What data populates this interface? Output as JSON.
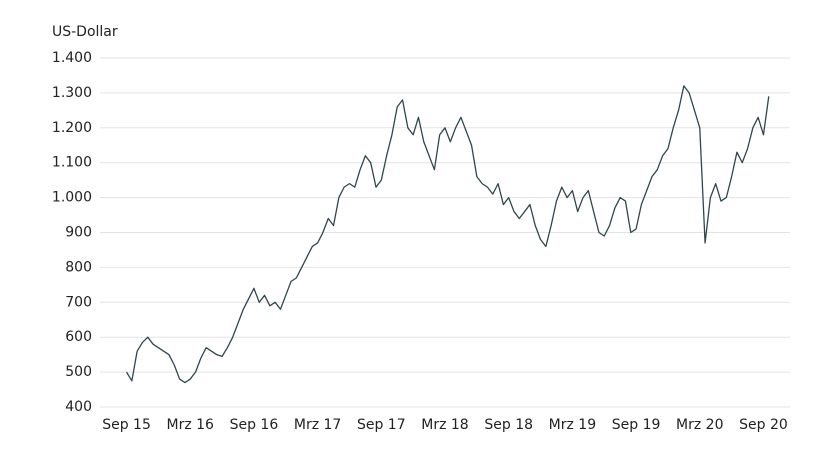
{
  "chart_data": {
    "type": "line",
    "ylabel": "US-Dollar",
    "color": "#2f474c",
    "grid": true,
    "x": [
      0,
      0.5,
      1,
      1.5,
      2,
      2.5,
      3,
      3.5,
      4,
      4.5,
      5,
      5.5,
      6,
      6.5,
      7,
      7.5,
      8,
      8.5,
      9,
      9.5,
      10,
      10.5,
      11,
      11.5,
      12,
      12.5,
      13,
      13.5,
      14,
      14.5,
      15,
      15.5,
      16,
      16.5,
      17,
      17.5,
      18,
      18.5,
      19,
      19.5,
      20,
      20.5,
      21,
      21.5,
      22,
      22.5,
      23,
      23.5,
      24,
      24.5,
      25,
      25.5,
      26,
      26.5,
      27,
      27.5,
      28,
      28.5,
      29,
      29.5,
      30,
      30.5,
      31,
      31.5,
      32,
      32.5,
      33,
      33.5,
      34,
      34.5,
      35,
      35.5,
      36,
      36.5,
      37,
      37.5,
      38,
      38.5,
      39,
      39.5,
      40,
      40.5,
      41,
      41.5,
      42,
      42.5,
      43,
      43.5,
      44,
      44.5,
      45,
      45.5,
      46,
      46.5,
      47,
      47.5,
      48,
      48.5,
      49,
      49.5,
      50,
      50.5,
      51,
      51.5,
      52,
      52.5,
      53,
      53.5,
      54,
      54.5,
      55,
      55.5,
      56,
      56.5,
      57,
      57.5,
      58,
      58.5,
      59,
      59.5,
      60,
      60.5
    ],
    "values": [
      500,
      475,
      560,
      585,
      600,
      580,
      570,
      560,
      550,
      520,
      480,
      470,
      480,
      500,
      540,
      570,
      560,
      550,
      545,
      570,
      600,
      640,
      680,
      710,
      740,
      700,
      720,
      690,
      700,
      680,
      720,
      760,
      770,
      800,
      830,
      860,
      870,
      900,
      940,
      920,
      1000,
      1030,
      1040,
      1030,
      1080,
      1120,
      1100,
      1030,
      1050,
      1120,
      1180,
      1260,
      1280,
      1200,
      1180,
      1230,
      1160,
      1120,
      1080,
      1180,
      1200,
      1160,
      1200,
      1230,
      1190,
      1150,
      1060,
      1040,
      1030,
      1010,
      1040,
      980,
      1000,
      960,
      940,
      960,
      980,
      920,
      880,
      860,
      920,
      990,
      1030,
      1000,
      1020,
      960,
      1000,
      1020,
      960,
      900,
      890,
      920,
      970,
      1000,
      990,
      900,
      910,
      980,
      1020,
      1060,
      1080,
      1120,
      1140,
      1200,
      1250,
      1320,
      1300,
      1250,
      1200,
      870,
      1000,
      1040,
      990,
      1000,
      1060,
      1130,
      1100,
      1140,
      1200,
      1230,
      1180,
      1290
    ],
    "xlim": [
      -2.5,
      62.5
    ],
    "xticks": [
      {
        "value": 0,
        "label": "Sep 15"
      },
      {
        "value": 6,
        "label": "Mrz 16"
      },
      {
        "value": 12,
        "label": "Sep 16"
      },
      {
        "value": 18,
        "label": "Mrz 17"
      },
      {
        "value": 24,
        "label": "Sep 17"
      },
      {
        "value": 30,
        "label": "Mrz 18"
      },
      {
        "value": 36,
        "label": "Sep 18"
      },
      {
        "value": 42,
        "label": "Mrz 19"
      },
      {
        "value": 48,
        "label": "Sep 19"
      },
      {
        "value": 54,
        "label": "Mrz 20"
      },
      {
        "value": 60,
        "label": "Sep 20"
      }
    ],
    "ylim": [
      400,
      1400
    ],
    "yticks": [
      400,
      500,
      600,
      700,
      800,
      900,
      {
        "value": 1000,
        "label": "1.000"
      },
      {
        "value": 1100,
        "label": "1.100"
      },
      {
        "value": 1200,
        "label": "1.200"
      },
      {
        "value": 1300,
        "label": "1.300"
      },
      {
        "value": 1400,
        "label": "1.400"
      }
    ]
  }
}
